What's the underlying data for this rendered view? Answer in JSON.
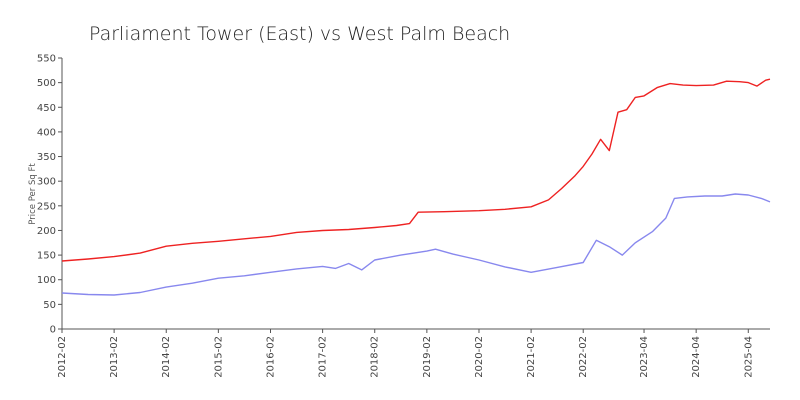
{
  "chart_data": {
    "type": "line",
    "title": "Parliament Tower (East) vs West Palm Beach",
    "xlabel": "",
    "ylabel": "Price Per Sq Ft",
    "ylim": [
      0,
      550
    ],
    "yticks": [
      0,
      50,
      100,
      150,
      200,
      250,
      300,
      350,
      400,
      450,
      500,
      550
    ],
    "xlim": [
      "2012-02",
      "2025-09"
    ],
    "xticks": [
      "2012-02",
      "2013-02",
      "2014-02",
      "2015-02",
      "2016-02",
      "2017-02",
      "2018-02",
      "2019-02",
      "2020-02",
      "2021-02",
      "2022-02",
      "2023-04",
      "2024-04",
      "2025-04"
    ],
    "grid": false,
    "legend": "none",
    "series": [
      {
        "color": "#ee2222",
        "points": [
          [
            "2012-02",
            138
          ],
          [
            "2012-08",
            142
          ],
          [
            "2013-02",
            147
          ],
          [
            "2013-08",
            154
          ],
          [
            "2014-02",
            168
          ],
          [
            "2014-08",
            174
          ],
          [
            "2015-02",
            178
          ],
          [
            "2015-08",
            183
          ],
          [
            "2016-02",
            188
          ],
          [
            "2016-08",
            196
          ],
          [
            "2017-02",
            200
          ],
          [
            "2017-08",
            202
          ],
          [
            "2018-02",
            206
          ],
          [
            "2018-07",
            210
          ],
          [
            "2018-10",
            214
          ],
          [
            "2018-12",
            237
          ],
          [
            "2019-06",
            238
          ],
          [
            "2020-02",
            240
          ],
          [
            "2020-08",
            243
          ],
          [
            "2021-02",
            248
          ],
          [
            "2021-06",
            262
          ],
          [
            "2021-09",
            285
          ],
          [
            "2021-12",
            310
          ],
          [
            "2022-02",
            330
          ],
          [
            "2022-04",
            355
          ],
          [
            "2022-06",
            385
          ],
          [
            "2022-08",
            362
          ],
          [
            "2022-10",
            440
          ],
          [
            "2022-12",
            445
          ],
          [
            "2023-02",
            470
          ],
          [
            "2023-04",
            473
          ],
          [
            "2023-07",
            490
          ],
          [
            "2023-10",
            498
          ],
          [
            "2024-01",
            495
          ],
          [
            "2024-04",
            494
          ],
          [
            "2024-08",
            495
          ],
          [
            "2024-11",
            503
          ],
          [
            "2025-02",
            502
          ],
          [
            "2025-04",
            500
          ],
          [
            "2025-06",
            493
          ],
          [
            "2025-08",
            505
          ],
          [
            "2025-09",
            507
          ]
        ]
      },
      {
        "color": "#8888ee",
        "points": [
          [
            "2012-02",
            73
          ],
          [
            "2012-08",
            70
          ],
          [
            "2013-02",
            69
          ],
          [
            "2013-08",
            74
          ],
          [
            "2014-02",
            85
          ],
          [
            "2014-08",
            93
          ],
          [
            "2015-02",
            103
          ],
          [
            "2015-08",
            108
          ],
          [
            "2016-02",
            115
          ],
          [
            "2016-08",
            122
          ],
          [
            "2017-02",
            127
          ],
          [
            "2017-05",
            123
          ],
          [
            "2017-08",
            133
          ],
          [
            "2017-11",
            120
          ],
          [
            "2018-02",
            140
          ],
          [
            "2018-08",
            150
          ],
          [
            "2019-02",
            158
          ],
          [
            "2019-04",
            162
          ],
          [
            "2019-08",
            152
          ],
          [
            "2020-02",
            140
          ],
          [
            "2020-08",
            126
          ],
          [
            "2021-02",
            115
          ],
          [
            "2021-08",
            125
          ],
          [
            "2022-02",
            135
          ],
          [
            "2022-05",
            180
          ],
          [
            "2022-08",
            167
          ],
          [
            "2022-11",
            150
          ],
          [
            "2023-02",
            175
          ],
          [
            "2023-06",
            198
          ],
          [
            "2023-09",
            225
          ],
          [
            "2023-11",
            265
          ],
          [
            "2024-02",
            268
          ],
          [
            "2024-06",
            270
          ],
          [
            "2024-10",
            270
          ],
          [
            "2025-01",
            274
          ],
          [
            "2025-04",
            272
          ],
          [
            "2025-07",
            265
          ],
          [
            "2025-09",
            258
          ]
        ]
      }
    ]
  }
}
